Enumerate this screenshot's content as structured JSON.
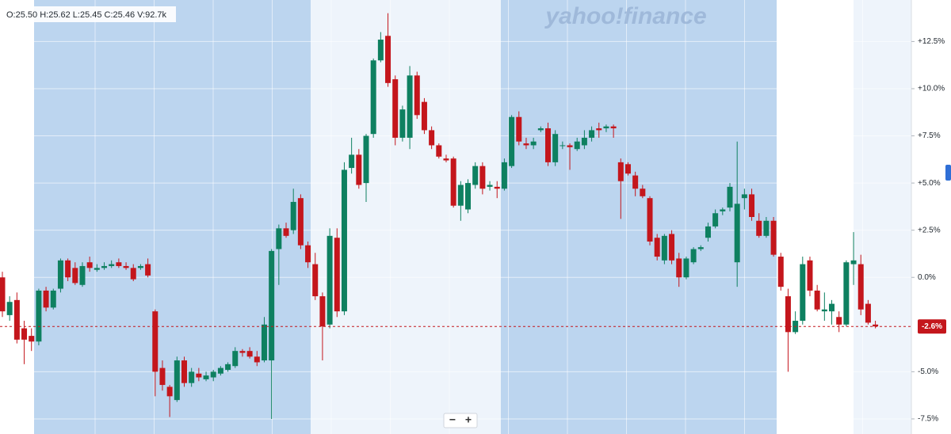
{
  "chart_data": {
    "type": "candlestick",
    "ohlc_legend": "O:25.50 H:25.62 L:25.45 C:25.46 V:92.7k",
    "watermark": "yahoo!finance",
    "controls": [
      "−",
      "+"
    ],
    "up_color": "#0e8060",
    "down_color": "#c4161c",
    "ylim": [
      -8.3,
      14.7
    ],
    "yticks": [
      {
        "value": 12.5,
        "label": "+12.5%"
      },
      {
        "value": 10,
        "label": "+10.0%"
      },
      {
        "value": 7.5,
        "label": "+7.5%"
      },
      {
        "value": 5,
        "label": "+5.0%"
      },
      {
        "value": 2.5,
        "label": "+2.5%"
      },
      {
        "value": 0,
        "label": "0.0%"
      },
      {
        "value": -5,
        "label": "-5.0%"
      },
      {
        "value": -7.5,
        "label": "-7.5%"
      }
    ],
    "grid": true,
    "last_value": -2.6,
    "last_label": "-2.6%",
    "open": [
      0.0,
      -2.0,
      -1.2,
      -2.7,
      -3.1,
      -3.4,
      -0.7,
      -1.6,
      -0.6,
      0.9,
      0.5,
      -0.4,
      0.8,
      0.4,
      0.5,
      0.6,
      0.8,
      0.6,
      0.5,
      0.5,
      0.7,
      -1.8,
      -4.8,
      -5.8,
      -6.5,
      -4.4,
      -5.6,
      -5.1,
      -5.4,
      -5.3,
      -5.1,
      -4.9,
      -4.7,
      -3.9,
      -3.9,
      -4.2,
      -4.4,
      -4.4,
      1.5,
      2.6,
      2.5,
      4.2,
      1.7,
      0.7,
      -1.0,
      -2.5,
      2.1,
      -1.8,
      5.8,
      6.5,
      5.0,
      7.6,
      11.5,
      12.8,
      10.5,
      7.4,
      7.4,
      10.7,
      9.3,
      7.8,
      7.0,
      6.3,
      6.3,
      3.8,
      3.6,
      4.9,
      5.9,
      4.8,
      4.8,
      4.7,
      5.9,
      8.5,
      7.1,
      7.0,
      7.8,
      7.9,
      6.1,
      7.0,
      7.0,
      6.8,
      7.0,
      7.4,
      7.9,
      7.9,
      8.0,
      6.1,
      6.0,
      5.4,
      4.7,
      4.2,
      2.1,
      0.9,
      2.3,
      1.0,
      0.0,
      0.8,
      1.5,
      2.1,
      2.7,
      3.5,
      3.7,
      0.8,
      4.2,
      4.4,
      3.0,
      2.2,
      3.0,
      1.1,
      -1.0,
      -2.9,
      -2.3,
      0.9,
      -0.7,
      -1.8,
      -1.8,
      -2.1,
      -2.5,
      0.7,
      0.7,
      -1.4,
      -2.5
    ],
    "high": [
      0.3,
      -1.0,
      -0.8,
      -2.3,
      -2.7,
      -0.6,
      -0.5,
      -0.6,
      1.0,
      1.0,
      0.8,
      0.8,
      1.1,
      0.7,
      0.8,
      0.9,
      1.0,
      0.8,
      0.7,
      0.7,
      1.0,
      -1.7,
      -4.4,
      -5.7,
      -4.2,
      -4.2,
      -4.8,
      -4.8,
      -5.0,
      -4.9,
      -4.7,
      -4.5,
      -3.7,
      -3.8,
      -3.7,
      -3.9,
      -2.1,
      1.5,
      2.8,
      2.9,
      4.7,
      4.4,
      1.9,
      1.3,
      -0.8,
      2.6,
      2.6,
      6.1,
      7.4,
      6.8,
      7.6,
      11.6,
      13.0,
      14.0,
      10.7,
      9.1,
      11.2,
      10.9,
      9.5,
      8.0,
      7.1,
      6.5,
      6.4,
      5.1,
      5.2,
      6.1,
      6.1,
      5.1,
      5.1,
      6.3,
      8.6,
      8.8,
      7.4,
      7.4,
      8.0,
      8.2,
      7.8,
      7.2,
      7.1,
      7.4,
      7.8,
      8.0,
      8.2,
      8.1,
      8.1,
      6.3,
      6.1,
      5.6,
      4.9,
      4.3,
      2.3,
      2.3,
      2.5,
      1.3,
      1.1,
      1.6,
      1.7,
      2.9,
      3.6,
      3.7,
      5.0,
      7.2,
      4.7,
      4.7,
      3.4,
      3.2,
      3.2,
      1.3,
      -0.6,
      -1.8,
      1.1,
      1.1,
      -0.4,
      -0.8,
      -1.2,
      -1.8,
      0.9,
      2.4,
      1.2,
      -1.2,
      -2.3
    ],
    "low": [
      -2.1,
      -2.3,
      -3.5,
      -4.6,
      -3.9,
      -3.6,
      -1.8,
      -1.7,
      -0.8,
      -0.2,
      -0.4,
      -0.5,
      0.3,
      0.3,
      0.4,
      0.5,
      0.5,
      0.4,
      -0.2,
      0.4,
      0.0,
      -6.3,
      -6.0,
      -7.4,
      -6.6,
      -5.8,
      -5.8,
      -5.5,
      -5.5,
      -5.5,
      -5.2,
      -5.0,
      -4.8,
      -4.2,
      -4.3,
      -4.7,
      -4.5,
      -7.5,
      -0.4,
      2.1,
      2.3,
      1.5,
      0.5,
      -1.2,
      -4.4,
      -2.7,
      -2.1,
      -2.0,
      5.5,
      4.7,
      4.0,
      7.4,
      11.4,
      10.1,
      7.0,
      7.2,
      6.8,
      8.4,
      7.6,
      6.8,
      6.3,
      6.1,
      3.7,
      3.0,
      3.4,
      4.7,
      4.4,
      4.6,
      4.2,
      4.6,
      5.8,
      7.0,
      6.8,
      6.8,
      7.7,
      5.9,
      5.9,
      6.8,
      5.7,
      6.7,
      6.8,
      7.2,
      7.4,
      7.7,
      7.4,
      3.1,
      5.4,
      4.3,
      4.2,
      1.7,
      0.9,
      0.7,
      0.7,
      -0.5,
      -0.1,
      0.7,
      1.4,
      1.9,
      2.6,
      3.3,
      3.5,
      -0.5,
      3.6,
      3.0,
      2.1,
      2.1,
      1.1,
      -0.7,
      -5.0,
      -3.0,
      -2.5,
      -1.0,
      -1.8,
      -2.3,
      -2.5,
      -2.9,
      -2.6,
      -0.4,
      -2.0,
      -2.5,
      -2.7
    ],
    "close": [
      -1.8,
      -1.3,
      -3.3,
      -3.3,
      -3.4,
      -0.7,
      -1.6,
      -0.7,
      0.9,
      0.0,
      -0.3,
      0.6,
      0.5,
      0.5,
      0.6,
      0.7,
      0.6,
      0.5,
      -0.1,
      0.6,
      0.1,
      -5.0,
      -5.7,
      -6.3,
      -4.4,
      -5.6,
      -5.0,
      -5.3,
      -5.2,
      -5.0,
      -4.8,
      -4.6,
      -3.9,
      -4.0,
      -4.2,
      -4.5,
      -2.5,
      1.4,
      2.6,
      2.2,
      4.0,
      1.7,
      0.8,
      -1.0,
      -2.6,
      2.2,
      -1.8,
      5.7,
      6.5,
      4.9,
      7.5,
      11.5,
      12.6,
      10.3,
      7.4,
      8.9,
      10.7,
      8.6,
      7.8,
      7.0,
      6.4,
      6.2,
      3.8,
      4.9,
      5.0,
      5.9,
      4.7,
      4.9,
      4.7,
      6.1,
      8.5,
      7.2,
      7.0,
      7.2,
      7.9,
      6.1,
      7.6,
      7.0,
      6.9,
      7.2,
      7.4,
      7.8,
      7.8,
      8.0,
      7.9,
      5.1,
      5.5,
      4.7,
      4.3,
      1.9,
      1.1,
      2.2,
      0.9,
      0.0,
      1.0,
      1.5,
      1.6,
      2.7,
      3.4,
      3.6,
      4.8,
      3.9,
      4.4,
      3.2,
      2.2,
      3.0,
      1.2,
      -0.5,
      -2.9,
      -2.3,
      0.7,
      -0.7,
      -1.7,
      -1.7,
      -1.4,
      -2.5,
      0.8,
      0.9,
      -1.7,
      -2.4,
      -2.6
    ]
  }
}
